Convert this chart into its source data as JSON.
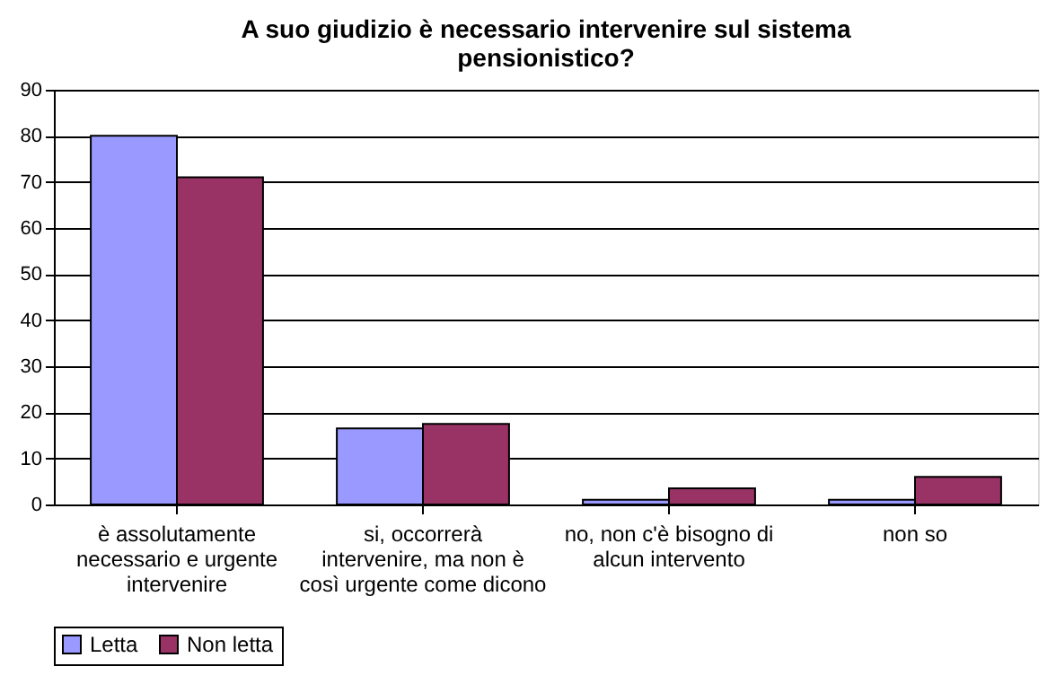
{
  "chart_data": {
    "type": "bar",
    "title": "A suo giudizio è necessario intervenire sul sistema pensionistico?",
    "categories": [
      "è assolutamente necessario e urgente intervenire",
      "si, occorrerà intervenire, ma non è così urgente come dicono",
      "no, non c'è bisogno di alcun intervento",
      "non so"
    ],
    "series": [
      {
        "name": "Letta",
        "color": "#9999ff",
        "values": [
          80,
          16.5,
          1,
          1
        ]
      },
      {
        "name": "Non letta",
        "color": "#993366",
        "values": [
          71,
          17.5,
          3.5,
          6
        ]
      }
    ],
    "ylim": [
      0,
      90
    ],
    "yticks": [
      0,
      10,
      20,
      30,
      40,
      50,
      60,
      70,
      80,
      90
    ],
    "grid": "y",
    "legend": "bottom"
  }
}
